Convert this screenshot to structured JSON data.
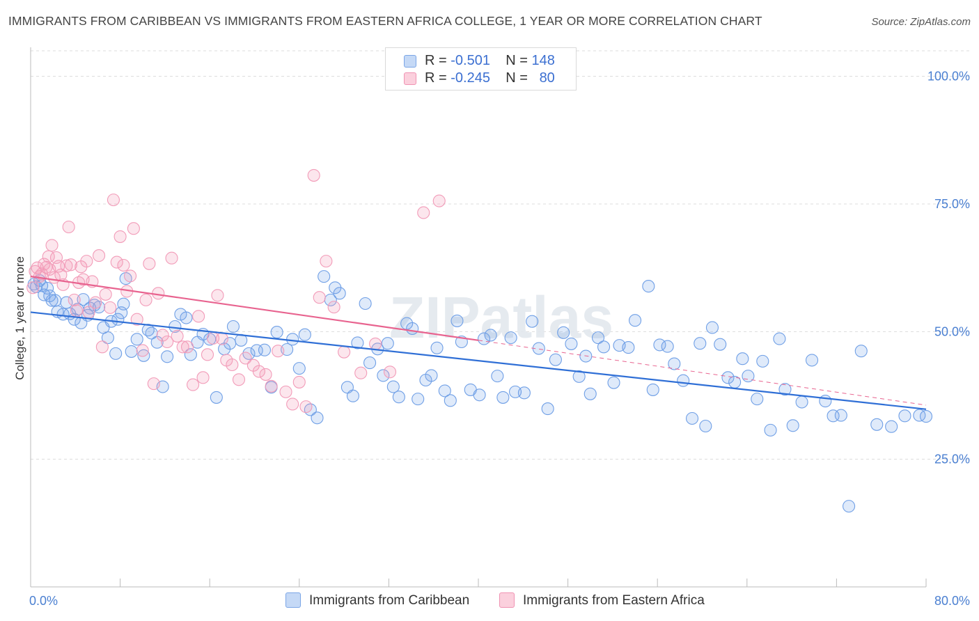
{
  "title": "IMMIGRANTS FROM CARIBBEAN VS IMMIGRANTS FROM EASTERN AFRICA COLLEGE, 1 YEAR OR MORE CORRELATION CHART",
  "source": "Source: ZipAtlas.com",
  "watermark": "ZIPatlas",
  "legend": {
    "rows": [
      {
        "r_label": "R =",
        "r_value": "-0.501",
        "n_label": "N =",
        "n_value": "148"
      },
      {
        "r_label": "R =",
        "r_value": "-0.245",
        "n_label": "N =",
        "n_value": "80"
      }
    ]
  },
  "chart_data": {
    "type": "scatter",
    "title": "IMMIGRANTS FROM CARIBBEAN VS IMMIGRANTS FROM EASTERN AFRICA COLLEGE, 1 YEAR OR MORE CORRELATION CHART",
    "xlabel": "",
    "ylabel": "College, 1 year or more",
    "xlim": [
      0,
      80
    ],
    "ylim": [
      0,
      105
    ],
    "x_tick_labels": [
      "0.0%",
      "80.0%"
    ],
    "y_ticks": [
      25,
      50,
      75,
      100
    ],
    "y_tick_labels": [
      "25.0%",
      "50.0%",
      "75.0%",
      "100.0%"
    ],
    "grid": true,
    "legend_position": "top-center",
    "colors": {
      "caribbean": "#6f9fe6",
      "eastern_africa": "#f29bb8",
      "caribbean_line": "#2f6fd6",
      "eastern_africa_line": "#e8638f"
    },
    "series": [
      {
        "name": "Immigrants from Caribbean",
        "r": -0.501,
        "n": 148,
        "trend": {
          "x": [
            0,
            80
          ],
          "y": [
            53.8,
            34.8
          ]
        },
        "points": [
          [
            0.3,
            59.3
          ],
          [
            0.5,
            58.8
          ],
          [
            0.8,
            60
          ],
          [
            1,
            59
          ],
          [
            1.2,
            57.2
          ],
          [
            1.5,
            58.5
          ],
          [
            1.7,
            57
          ],
          [
            1.9,
            56.1
          ],
          [
            2.2,
            56.1
          ],
          [
            2.4,
            53.9
          ],
          [
            2.9,
            53.4
          ],
          [
            3.2,
            55.7
          ],
          [
            3.5,
            53.5
          ],
          [
            3.9,
            52.4
          ],
          [
            4.2,
            54.4
          ],
          [
            4.5,
            51.7
          ],
          [
            4.7,
            56.3
          ],
          [
            5.1,
            53.2
          ],
          [
            5.3,
            54.6
          ],
          [
            5.7,
            55.2
          ],
          [
            6.1,
            54.8
          ],
          [
            6.5,
            50.8
          ],
          [
            6.9,
            48.8
          ],
          [
            7.2,
            52
          ],
          [
            7.6,
            45.7
          ],
          [
            7.8,
            52.4
          ],
          [
            8.1,
            53.7
          ],
          [
            8.3,
            55.4
          ],
          [
            8.5,
            60.4
          ],
          [
            9,
            46.1
          ],
          [
            9.5,
            48.5
          ],
          [
            10.1,
            45.3
          ],
          [
            10.5,
            50.3
          ],
          [
            10.8,
            49.7
          ],
          [
            11.3,
            47.9
          ],
          [
            11.8,
            39.2
          ],
          [
            12.2,
            45.1
          ],
          [
            12.9,
            51
          ],
          [
            13.4,
            53.4
          ],
          [
            13.9,
            52.7
          ],
          [
            14.3,
            45.5
          ],
          [
            14.9,
            47.9
          ],
          [
            15.4,
            49.5
          ],
          [
            16,
            48.5
          ],
          [
            16.6,
            37.1
          ],
          [
            17.3,
            46.6
          ],
          [
            17.8,
            47.7
          ],
          [
            18.1,
            51
          ],
          [
            18.8,
            48.3
          ],
          [
            19.5,
            45.7
          ],
          [
            20.2,
            46.3
          ],
          [
            20.9,
            46.4
          ],
          [
            21.5,
            39.1
          ],
          [
            22,
            49.9
          ],
          [
            22.9,
            46.5
          ],
          [
            23.4,
            48.5
          ],
          [
            24,
            42.8
          ],
          [
            24.5,
            49.4
          ],
          [
            25,
            34.7
          ],
          [
            25.6,
            33.1
          ],
          [
            26.2,
            60.8
          ],
          [
            26.8,
            56.2
          ],
          [
            27.2,
            58.6
          ],
          [
            27.6,
            57.5
          ],
          [
            28.3,
            39.1
          ],
          [
            28.8,
            37.4
          ],
          [
            29.2,
            47.8
          ],
          [
            29.9,
            55.5
          ],
          [
            30.3,
            43.9
          ],
          [
            31,
            46.6
          ],
          [
            31.5,
            41.4
          ],
          [
            31.9,
            47.7
          ],
          [
            32.4,
            39.2
          ],
          [
            32.9,
            37.2
          ],
          [
            33.6,
            51.6
          ],
          [
            34.1,
            50.6
          ],
          [
            34.6,
            36.8
          ],
          [
            35.3,
            40.5
          ],
          [
            35.8,
            41.4
          ],
          [
            36.3,
            46.8
          ],
          [
            37,
            38.4
          ],
          [
            37.5,
            36.5
          ],
          [
            38.1,
            52.1
          ],
          [
            38.5,
            48
          ],
          [
            39.3,
            38.6
          ],
          [
            40.1,
            37.6
          ],
          [
            40.5,
            48.6
          ],
          [
            41.1,
            49.3
          ],
          [
            41.7,
            41.3
          ],
          [
            42.2,
            37.1
          ],
          [
            42.9,
            48.8
          ],
          [
            43.3,
            38.2
          ],
          [
            44.1,
            38
          ],
          [
            44.8,
            52
          ],
          [
            45.4,
            46.7
          ],
          [
            46.2,
            34.9
          ],
          [
            46.9,
            44.5
          ],
          [
            47.6,
            49.8
          ],
          [
            48.3,
            47.6
          ],
          [
            49,
            41.2
          ],
          [
            49.6,
            45.2
          ],
          [
            50,
            37.8
          ],
          [
            50.7,
            48.8
          ],
          [
            51.2,
            47
          ],
          [
            52.1,
            40
          ],
          [
            52.6,
            47.3
          ],
          [
            53.4,
            46.9
          ],
          [
            54,
            52.2
          ],
          [
            55.2,
            58.9
          ],
          [
            55.6,
            38.6
          ],
          [
            56.2,
            47.4
          ],
          [
            56.9,
            47.1
          ],
          [
            57.5,
            43.7
          ],
          [
            58.3,
            40.4
          ],
          [
            59.1,
            33
          ],
          [
            59.8,
            47.7
          ],
          [
            60.3,
            31.5
          ],
          [
            60.9,
            50.8
          ],
          [
            61.6,
            47.5
          ],
          [
            62.3,
            41
          ],
          [
            62.9,
            40.1
          ],
          [
            63.6,
            44.7
          ],
          [
            64.1,
            41.3
          ],
          [
            64.9,
            36.8
          ],
          [
            65.4,
            44.2
          ],
          [
            66.1,
            30.7
          ],
          [
            66.9,
            48.6
          ],
          [
            67.4,
            38.7
          ],
          [
            68.1,
            31.6
          ],
          [
            68.9,
            36.2
          ],
          [
            69.8,
            44.4
          ],
          [
            71,
            36.4
          ],
          [
            71.7,
            33.5
          ],
          [
            72.4,
            33.6
          ],
          [
            73.1,
            15.8
          ],
          [
            74.2,
            46.2
          ],
          [
            75.6,
            31.8
          ],
          [
            76.9,
            31.4
          ],
          [
            78.1,
            33.5
          ],
          [
            79.4,
            33.6
          ],
          [
            80,
            33.4
          ]
        ]
      },
      {
        "name": "Immigrants from Eastern Africa",
        "r": -0.245,
        "n": 80,
        "trend": {
          "x": [
            0,
            40
          ],
          "y": [
            60.8,
            48.3
          ]
        },
        "trend_extension": {
          "x": [
            40,
            80
          ],
          "y": [
            48.3,
            35.6
          ]
        },
        "points": [
          [
            0.2,
            58.6
          ],
          [
            0.4,
            61.8
          ],
          [
            0.6,
            62.5
          ],
          [
            0.8,
            60.8
          ],
          [
            1,
            61.3
          ],
          [
            1.2,
            63.2
          ],
          [
            1.4,
            62.6
          ],
          [
            1.6,
            64.7
          ],
          [
            1.7,
            62.2
          ],
          [
            1.9,
            66.9
          ],
          [
            2.1,
            60.6
          ],
          [
            2.3,
            64.5
          ],
          [
            2.5,
            62.8
          ],
          [
            2.7,
            61.1
          ],
          [
            2.9,
            59.2
          ],
          [
            3.2,
            62.9
          ],
          [
            3.4,
            70.5
          ],
          [
            3.6,
            63.1
          ],
          [
            3.9,
            56.2
          ],
          [
            4.1,
            54.1
          ],
          [
            4.3,
            59.6
          ],
          [
            4.5,
            62.7
          ],
          [
            4.7,
            60.2
          ],
          [
            5,
            63.8
          ],
          [
            5.2,
            53.8
          ],
          [
            5.5,
            59.8
          ],
          [
            5.8,
            55.7
          ],
          [
            6.1,
            64.9
          ],
          [
            6.4,
            47
          ],
          [
            6.7,
            57.3
          ],
          [
            7.1,
            54.7
          ],
          [
            7.4,
            75.8
          ],
          [
            7.7,
            63.6
          ],
          [
            8,
            68.6
          ],
          [
            8.3,
            63
          ],
          [
            8.6,
            57.9
          ],
          [
            8.9,
            60.9
          ],
          [
            9.2,
            70.2
          ],
          [
            9.5,
            52.4
          ],
          [
            10,
            46.3
          ],
          [
            10.3,
            56.2
          ],
          [
            10.6,
            63.3
          ],
          [
            11,
            39.8
          ],
          [
            11.4,
            57.5
          ],
          [
            11.8,
            49.3
          ],
          [
            12.2,
            48
          ],
          [
            12.6,
            64.4
          ],
          [
            13.1,
            49.1
          ],
          [
            13.6,
            47
          ],
          [
            14,
            47
          ],
          [
            14.5,
            39.6
          ],
          [
            15,
            53
          ],
          [
            15.4,
            41
          ],
          [
            15.8,
            45.5
          ],
          [
            16.3,
            48.7
          ],
          [
            16.7,
            57.1
          ],
          [
            17.1,
            48.6
          ],
          [
            17.5,
            44.4
          ],
          [
            18,
            43.5
          ],
          [
            18.6,
            40.6
          ],
          [
            19.2,
            44.8
          ],
          [
            19.9,
            43.4
          ],
          [
            20.4,
            42.2
          ],
          [
            21,
            41.6
          ],
          [
            21.5,
            39.3
          ],
          [
            22.1,
            46.2
          ],
          [
            22.8,
            38.2
          ],
          [
            23.4,
            35.8
          ],
          [
            24,
            40.1
          ],
          [
            24.6,
            35.3
          ],
          [
            25.3,
            80.6
          ],
          [
            25.8,
            56.7
          ],
          [
            26.4,
            63.8
          ],
          [
            27.1,
            54.8
          ],
          [
            28,
            46
          ],
          [
            29.5,
            41.9
          ],
          [
            30.8,
            47.6
          ],
          [
            32.1,
            42.1
          ],
          [
            35.1,
            73.3
          ],
          [
            36.5,
            75.6
          ]
        ]
      }
    ]
  }
}
